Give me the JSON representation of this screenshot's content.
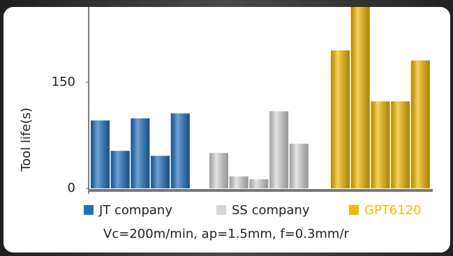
{
  "chart_data": {
    "type": "bar",
    "categories": [
      null,
      null,
      null,
      null,
      null
    ],
    "series": [
      {
        "name": "JT company",
        "color": "#1f6fc0",
        "values": [
          96,
          53,
          99,
          46,
          106
        ]
      },
      {
        "name": "SS company",
        "color": "#d6d6d6",
        "values": [
          50,
          17,
          13,
          109,
          63
        ]
      },
      {
        "name": "GPT6120",
        "color": "#f5b800",
        "values": [
          195,
          270,
          123,
          123,
          181
        ]
      }
    ],
    "ylabel": "Tool life(s)",
    "subtitle": "Vc=200m/min, ap=1.5mm, f=0.3mm/r",
    "ylim": [
      0,
      260
    ],
    "yticks": [
      0,
      150
    ],
    "grid": false
  }
}
